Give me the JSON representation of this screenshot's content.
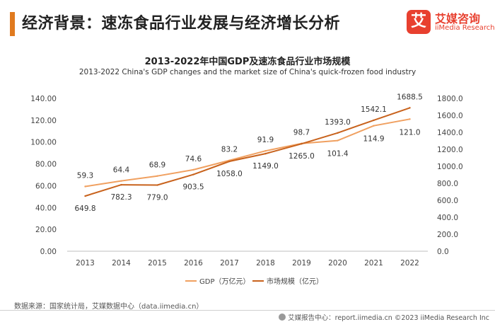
{
  "page": {
    "title": "经济背景：速冻食品行业发展与经济增长分析",
    "logo_mark": "艾",
    "logo_cn": "艾媒咨询",
    "logo_en": "iiMedia Research",
    "source": "数据来源：国家统计局，艾媒数据中心（data.iimedia.cn）",
    "copyright": "艾媒报告中心：report.iimedia.cn  ©2023  iiMedia Research  Inc"
  },
  "colors": {
    "accent": "#e07a1f",
    "gdp_line": "#f0a060",
    "market_line": "#c8621c",
    "logo": "#e8402f"
  },
  "chart_data": {
    "type": "line",
    "title": "2013-2022年中国GDP及速冻食品行业市场规模",
    "subtitle": "2013-2022 China's GDP changes and the market size of China's quick-frozen food industry",
    "categories": [
      "2013",
      "2014",
      "2015",
      "2016",
      "2017",
      "2018",
      "2019",
      "2020",
      "2021",
      "2022"
    ],
    "series": [
      {
        "name": "GDP（万亿元）",
        "axis": "left",
        "values": [
          59.3,
          64.4,
          68.9,
          74.6,
          83.2,
          91.9,
          98.7,
          101.4,
          114.9,
          121.0
        ],
        "labels": [
          "59.3",
          "64.4",
          "68.9",
          "74.6",
          "83.2",
          "91.9",
          "98.7",
          "101.4",
          "114.9",
          "121.0"
        ]
      },
      {
        "name": "市场规模（亿元）",
        "axis": "right",
        "values": [
          649.8,
          782.3,
          779.0,
          903.5,
          1058.0,
          1149.0,
          1265.0,
          1393.0,
          1542.1,
          1688.5
        ],
        "labels": [
          "649.8",
          "782.3",
          "779.0",
          "903.5",
          "1058.0",
          "1149.0",
          "1265.0",
          "1393.0",
          "1542.1",
          "1688.5"
        ]
      }
    ],
    "y_left": {
      "ylim": [
        0,
        140
      ],
      "ticks": [
        "0.00",
        "20.00",
        "40.00",
        "60.00",
        "80.00",
        "100.00",
        "120.00",
        "140.00"
      ]
    },
    "y_right": {
      "ylim": [
        0,
        1800
      ],
      "ticks": [
        "0.0",
        "200.0",
        "400.0",
        "600.0",
        "800.0",
        "1000.0",
        "1200.0",
        "1400.0",
        "1600.0",
        "1800.0"
      ]
    },
    "grid": false,
    "legend": "bottom"
  }
}
